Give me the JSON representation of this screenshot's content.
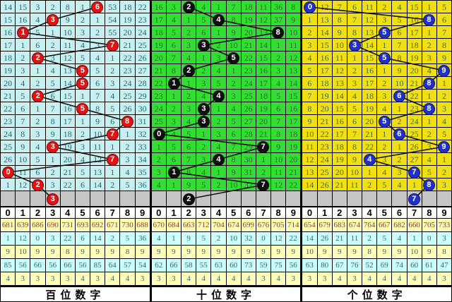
{
  "chart_data": {
    "type": "table",
    "title": "3D lottery digit trend chart",
    "column_headers": [
      "0",
      "1",
      "2",
      "3",
      "4",
      "5",
      "6",
      "7",
      "8",
      "9"
    ],
    "panels": [
      {
        "label": "百位数字",
        "bg": "#c9f0f1",
        "text_color": "#1f6a75",
        "circle_color": "#e81010",
        "rows": [
          [
            14,
            15,
            3,
            2,
            8,
            1,
            6,
            53,
            18,
            22
          ],
          [
            15,
            16,
            4,
            3,
            9,
            2,
            1,
            54,
            19,
            23
          ],
          [
            16,
            1,
            5,
            1,
            10,
            3,
            2,
            55,
            20,
            24
          ],
          [
            17,
            1,
            6,
            2,
            11,
            4,
            3,
            7,
            21,
            25
          ],
          [
            18,
            2,
            2,
            3,
            12,
            5,
            4,
            1,
            22,
            26
          ],
          [
            19,
            3,
            1,
            4,
            13,
            5,
            5,
            2,
            23,
            27
          ],
          [
            20,
            4,
            2,
            5,
            14,
            5,
            6,
            3,
            24,
            28
          ],
          [
            21,
            5,
            2,
            6,
            15,
            1,
            7,
            4,
            25,
            29
          ],
          [
            22,
            6,
            1,
            7,
            16,
            5,
            8,
            5,
            26,
            30
          ],
          [
            23,
            7,
            2,
            8,
            17,
            1,
            9,
            6,
            8,
            31
          ],
          [
            24,
            8,
            3,
            9,
            18,
            2,
            10,
            7,
            1,
            32
          ],
          [
            25,
            9,
            4,
            3,
            19,
            3,
            11,
            1,
            2,
            33
          ],
          [
            26,
            10,
            5,
            1,
            20,
            4,
            12,
            7,
            3,
            34
          ],
          [
            0,
            11,
            6,
            2,
            21,
            5,
            13,
            1,
            4,
            35
          ],
          [
            1,
            12,
            2,
            3,
            22,
            6,
            14,
            2,
            5,
            36
          ]
        ],
        "hits": [
          6,
          3,
          1,
          7,
          2,
          5,
          5,
          2,
          5,
          8,
          7,
          3,
          7,
          0,
          2
        ],
        "pending_digit": 3,
        "stats": [
          [
            681,
            639,
            686,
            690,
            731,
            693,
            692,
            671,
            730,
            688
          ],
          [
            1,
            12,
            0,
            3,
            22,
            6,
            14,
            2,
            5,
            36
          ],
          [
            9,
            10,
            9,
            9,
            8,
            9,
            9,
            9,
            8,
            9
          ],
          [
            85,
            56,
            66,
            56,
            66,
            56,
            85,
            64,
            57,
            54
          ],
          [
            4,
            3,
            3,
            3,
            3,
            4,
            3,
            4,
            4,
            3
          ]
        ]
      },
      {
        "label": "十位数字",
        "bg": "#33dd33",
        "text_color": "#2d6e2d",
        "circle_color": "#0d0d0d",
        "rows": [
          [
            16,
            3,
            2,
            4,
            1,
            7,
            18,
            11,
            36,
            8
          ],
          [
            17,
            4,
            1,
            5,
            4,
            8,
            19,
            12,
            37,
            9
          ],
          [
            18,
            5,
            2,
            6,
            1,
            9,
            20,
            13,
            8,
            10
          ],
          [
            19,
            6,
            3,
            3,
            2,
            10,
            21,
            14,
            1,
            11
          ],
          [
            20,
            7,
            4,
            1,
            3,
            5,
            22,
            15,
            2,
            12
          ],
          [
            21,
            8,
            2,
            2,
            4,
            1,
            23,
            16,
            3,
            13
          ],
          [
            22,
            1,
            1,
            3,
            5,
            2,
            24,
            17,
            4,
            14
          ],
          [
            23,
            1,
            2,
            4,
            4,
            3,
            25,
            18,
            5,
            15
          ],
          [
            24,
            2,
            3,
            3,
            1,
            4,
            26,
            19,
            6,
            16
          ],
          [
            25,
            3,
            4,
            3,
            2,
            5,
            27,
            20,
            7,
            17
          ],
          [
            0,
            4,
            5,
            1,
            3,
            6,
            28,
            21,
            8,
            18
          ],
          [
            1,
            5,
            6,
            2,
            4,
            7,
            29,
            7,
            9,
            19
          ],
          [
            2,
            6,
            7,
            3,
            4,
            8,
            30,
            1,
            10,
            20
          ],
          [
            3,
            1,
            8,
            4,
            1,
            9,
            31,
            2,
            11,
            21
          ],
          [
            4,
            1,
            9,
            5,
            2,
            10,
            32,
            7,
            12,
            22
          ]
        ],
        "hits": [
          2,
          4,
          8,
          3,
          5,
          2,
          1,
          4,
          3,
          3,
          0,
          7,
          4,
          1,
          7
        ],
        "pending_digit": 2,
        "stats": [
          [
            670,
            684,
            663,
            712,
            704,
            674,
            699,
            676,
            705,
            714
          ],
          [
            4,
            1,
            9,
            5,
            2,
            10,
            32,
            0,
            12,
            22
          ],
          [
            9,
            9,
            9,
            9,
            9,
            9,
            9,
            9,
            9,
            9
          ],
          [
            62,
            66,
            58,
            55,
            63,
            60,
            73,
            59,
            75,
            56
          ],
          [
            3,
            3,
            4,
            4,
            4,
            4,
            4,
            3,
            4,
            3
          ]
        ]
      },
      {
        "label": "个位数字",
        "bg": "#f0df12",
        "text_color": "#3d6e5a",
        "circle_color": "#2030cf",
        "rows": [
          [
            0,
            12,
            7,
            6,
            11,
            2,
            4,
            15,
            1,
            5
          ],
          [
            1,
            13,
            8,
            7,
            12,
            3,
            5,
            16,
            8,
            6
          ],
          [
            2,
            14,
            9,
            8,
            13,
            5,
            6,
            17,
            1,
            7
          ],
          [
            3,
            15,
            10,
            3,
            14,
            1,
            7,
            18,
            2,
            8
          ],
          [
            4,
            16,
            11,
            1,
            15,
            5,
            8,
            19,
            3,
            9
          ],
          [
            5,
            17,
            12,
            2,
            16,
            1,
            9,
            20,
            4,
            9
          ],
          [
            6,
            18,
            13,
            3,
            17,
            2,
            10,
            21,
            8,
            1
          ],
          [
            7,
            19,
            14,
            4,
            18,
            3,
            6,
            22,
            1,
            2
          ],
          [
            8,
            20,
            15,
            5,
            19,
            4,
            1,
            23,
            8,
            3
          ],
          [
            9,
            21,
            16,
            6,
            20,
            5,
            2,
            24,
            1,
            4
          ],
          [
            10,
            22,
            17,
            7,
            21,
            1,
            6,
            25,
            2,
            5
          ],
          [
            11,
            23,
            18,
            8,
            22,
            2,
            1,
            26,
            3,
            9
          ],
          [
            12,
            24,
            19,
            9,
            4,
            3,
            2,
            27,
            4,
            1
          ],
          [
            13,
            25,
            20,
            10,
            1,
            4,
            3,
            7,
            5,
            2
          ],
          [
            14,
            26,
            21,
            11,
            2,
            5,
            4,
            1,
            8,
            3
          ]
        ],
        "hits": [
          0,
          8,
          5,
          3,
          5,
          9,
          8,
          6,
          8,
          5,
          6,
          9,
          4,
          7,
          8
        ],
        "pending_digit": 7,
        "stats": [
          [
            654,
            679,
            683,
            674,
            764,
            667,
            682,
            660,
            705,
            733
          ],
          [
            14,
            26,
            21,
            11,
            2,
            5,
            4,
            1,
            0,
            3
          ],
          [
            10,
            9,
            9,
            9,
            8,
            9,
            9,
            10,
            9,
            8
          ],
          [
            63,
            80,
            67,
            76,
            52,
            69,
            74,
            60,
            61,
            47
          ],
          [
            3,
            3,
            4,
            3,
            4,
            4,
            4,
            4,
            4,
            3
          ]
        ]
      }
    ]
  },
  "colors": {
    "gray_row": "#c6c6c6",
    "stats_yellow": "#ffffbb",
    "stats_cyan": "#ccffff",
    "grid_line": "#000000",
    "trend_line": "#111111"
  }
}
